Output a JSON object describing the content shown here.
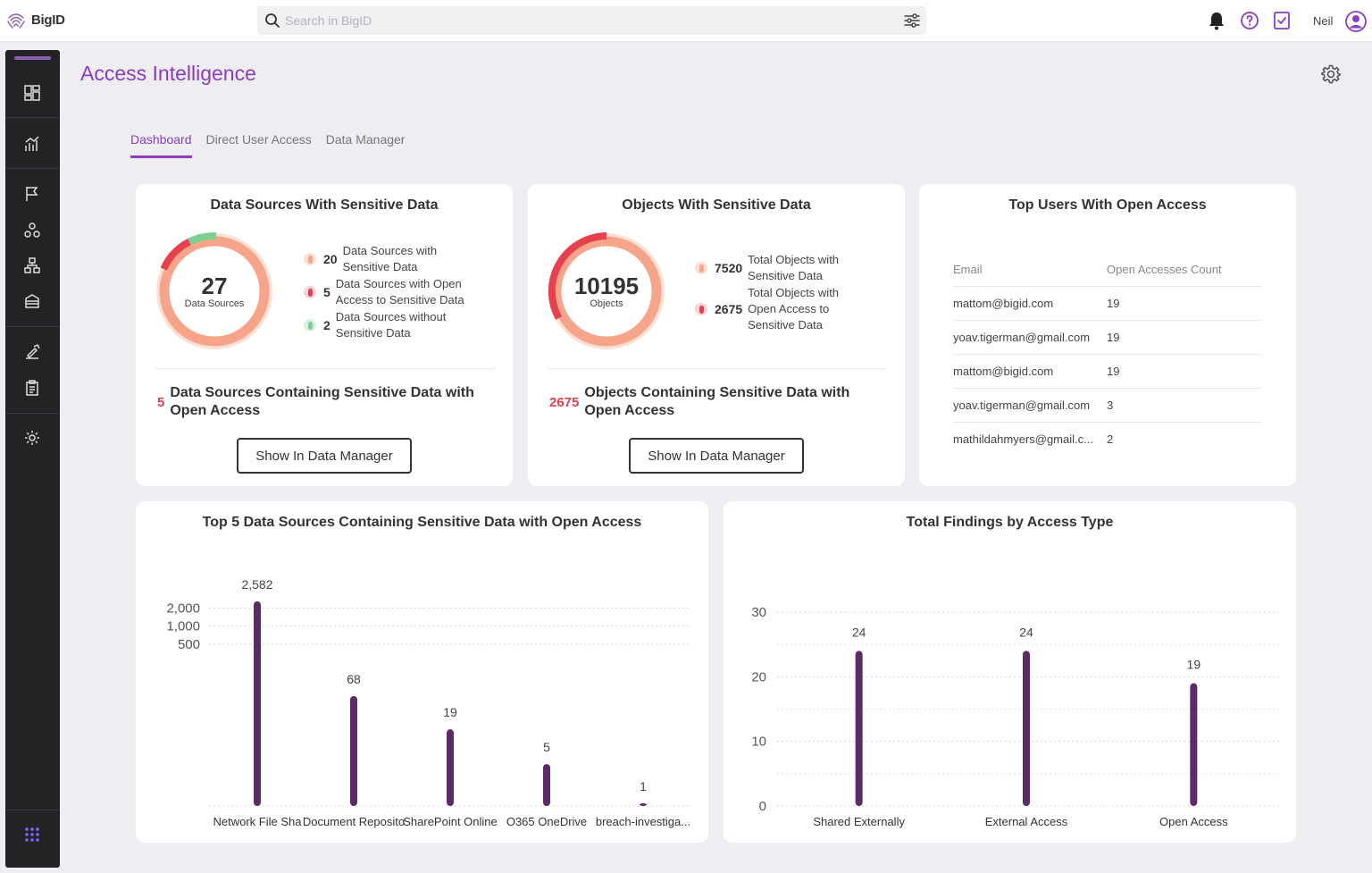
{
  "brand": {
    "name": "BigID",
    "accent": "#8a3dbf",
    "sidebar_bg": "#232325"
  },
  "search": {
    "placeholder": "Search in BigID"
  },
  "header": {
    "user_name": "Neil",
    "icons": [
      "bell-icon",
      "help-icon",
      "tasks-icon",
      "user-avatar-icon"
    ]
  },
  "sidebar": {
    "items": [
      "dashboard-icon",
      "reports-icon",
      "flag-icon",
      "clusters-icon",
      "hierarchy-icon",
      "catalog-icon",
      "remediation-icon",
      "clipboard-icon",
      "settings-icon",
      "apps-grid-icon"
    ]
  },
  "page": {
    "title": "Access Intelligence",
    "tabs": [
      {
        "label": "Dashboard",
        "active": true
      },
      {
        "label": "Direct User Access",
        "active": false
      },
      {
        "label": "Data Manager",
        "active": false
      }
    ]
  },
  "card_sources": {
    "title": "Data Sources With Sensitive Data",
    "center_value": "27",
    "center_label": "Data Sources",
    "legend": [
      {
        "value": "20",
        "label": "Data Sources with Sensitive Data",
        "color": "#f6a58a"
      },
      {
        "value": "5",
        "label": "Data Sources with Open Access to Sensitive Data",
        "color": "#e6414f"
      },
      {
        "value": "2",
        "label": "Data Sources without Sensitive Data",
        "color": "#7bd08f"
      }
    ],
    "summary_value": "5",
    "summary_text": "Data Sources Containing Sensitive Data with Open Access",
    "button": "Show In Data Manager"
  },
  "card_objects": {
    "title": "Objects With Sensitive Data",
    "center_value": "10195",
    "center_label": "Objects",
    "legend": [
      {
        "value": "7520",
        "label": "Total Objects with Sensitive Data",
        "color": "#f6a58a"
      },
      {
        "value": "2675",
        "label": "Total Objects with Open Access to Sensitive Data",
        "color": "#e6414f"
      }
    ],
    "summary_value": "2675",
    "summary_text": "Objects Containing Sensitive Data with Open Access",
    "button": "Show In Data Manager"
  },
  "card_users": {
    "title": "Top Users With Open Access",
    "columns": [
      "Email",
      "Open Accesses Count"
    ],
    "rows": [
      [
        "mattom@bigid.com",
        "19"
      ],
      [
        "yoav.tigerman@gmail.com",
        "19"
      ],
      [
        "mattom@bigid.com",
        "19"
      ],
      [
        "yoav.tigerman@gmail.com",
        "3"
      ],
      [
        "mathildahmyers@gmail.c...",
        "2"
      ]
    ]
  },
  "chart_data": [
    {
      "type": "bar",
      "title": "Top 5 Data Sources Containing Sensitive Data with Open Access",
      "categories": [
        "Network File Share",
        "Document Repository",
        "SharePoint Online",
        "O365 OneDrive",
        "breach-investiga..."
      ],
      "category_labels": [
        "Network File Sha",
        "Document Reposito",
        "SharePoint Online",
        "O365 OneDrive",
        "breach-investiga..."
      ],
      "values": [
        2582,
        68,
        19,
        5,
        1
      ],
      "value_labels": [
        "2,582",
        "68",
        "19",
        "5",
        "1"
      ],
      "y_scale": "log",
      "yticks": [
        500,
        1000,
        2000
      ],
      "ytick_labels": [
        "500",
        "1,000",
        "2,000"
      ],
      "color": "#5c2b66",
      "xlabel": "",
      "ylabel": ""
    },
    {
      "type": "bar",
      "title": "Total Findings by Access Type",
      "categories": [
        "Shared Externally",
        "External Access",
        "Open Access"
      ],
      "values": [
        24,
        24,
        19
      ],
      "value_labels": [
        "24",
        "24",
        "19"
      ],
      "ylim": [
        0,
        30
      ],
      "yticks": [
        0,
        10,
        20,
        30
      ],
      "ytick_labels": [
        "0",
        "10",
        "20",
        "30"
      ],
      "color": "#5c2b66",
      "xlabel": "",
      "ylabel": ""
    }
  ]
}
